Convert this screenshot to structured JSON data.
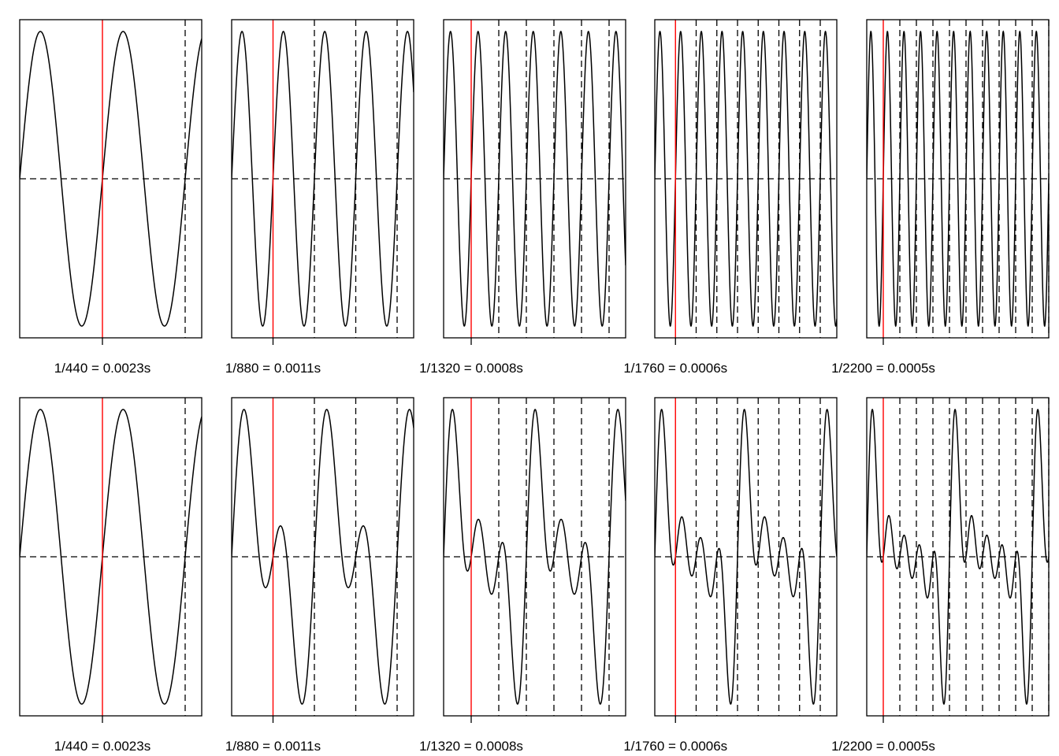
{
  "chart_data": [
    {
      "type": "line",
      "row": "top",
      "components_hz": [
        440
      ],
      "xlim_s": [
        0,
        0.005
      ],
      "marker_s": "1/440",
      "tick_label": "1/440 = 0.0023s",
      "horizontal_ref": 0,
      "colors": {
        "line": "#000000",
        "marker": "#ff0000"
      }
    },
    {
      "type": "line",
      "row": "top",
      "components_hz": [
        880
      ],
      "xlim_s": [
        0,
        0.005
      ],
      "marker_s": "1/880",
      "tick_label": "1/880 = 0.0011s",
      "horizontal_ref": 0,
      "colors": {
        "line": "#000000",
        "marker": "#ff0000"
      }
    },
    {
      "type": "line",
      "row": "top",
      "components_hz": [
        1320
      ],
      "xlim_s": [
        0,
        0.005
      ],
      "marker_s": "1/1320",
      "tick_label": "1/1320 = 0.0008s",
      "horizontal_ref": 0,
      "colors": {
        "line": "#000000",
        "marker": "#ff0000"
      }
    },
    {
      "type": "line",
      "row": "top",
      "components_hz": [
        1760
      ],
      "xlim_s": [
        0,
        0.005
      ],
      "marker_s": "1/1760",
      "tick_label": "1/1760 = 0.0006s",
      "horizontal_ref": 0,
      "colors": {
        "line": "#000000",
        "marker": "#ff0000"
      }
    },
    {
      "type": "line",
      "row": "top",
      "components_hz": [
        2200
      ],
      "xlim_s": [
        0,
        0.005
      ],
      "marker_s": "1/2200",
      "tick_label": "1/2200 = 0.0005s",
      "horizontal_ref": 0,
      "colors": {
        "line": "#000000",
        "marker": "#ff0000"
      }
    },
    {
      "type": "line",
      "row": "bottom",
      "components_hz": [
        440
      ],
      "xlim_s": [
        0,
        0.005
      ],
      "marker_s": "1/440",
      "tick_label": "1/440 = 0.0023s",
      "horizontal_ref": 0,
      "colors": {
        "line": "#000000",
        "marker": "#ff0000"
      }
    },
    {
      "type": "line",
      "row": "bottom",
      "components_hz": [
        440,
        880
      ],
      "xlim_s": [
        0,
        0.005
      ],
      "marker_s": "1/880",
      "tick_label": "1/880 = 0.0011s",
      "horizontal_ref": 0,
      "colors": {
        "line": "#000000",
        "marker": "#ff0000"
      }
    },
    {
      "type": "line",
      "row": "bottom",
      "components_hz": [
        440,
        880,
        1320
      ],
      "xlim_s": [
        0,
        0.005
      ],
      "marker_s": "1/1320",
      "tick_label": "1/1320 = 0.0008s",
      "horizontal_ref": 0,
      "colors": {
        "line": "#000000",
        "marker": "#ff0000"
      }
    },
    {
      "type": "line",
      "row": "bottom",
      "components_hz": [
        440,
        880,
        1320,
        1760
      ],
      "xlim_s": [
        0,
        0.005
      ],
      "marker_s": "1/1760",
      "tick_label": "1/1760 = 0.0006s",
      "horizontal_ref": 0,
      "colors": {
        "line": "#000000",
        "marker": "#ff0000"
      }
    },
    {
      "type": "line",
      "row": "bottom",
      "components_hz": [
        440,
        880,
        1320,
        1760,
        2200
      ],
      "xlim_s": [
        0,
        0.005
      ],
      "marker_s": "1/2200",
      "tick_label": "1/2200 = 0.0005s",
      "horizontal_ref": 0,
      "colors": {
        "line": "#000000",
        "marker": "#ff0000"
      }
    }
  ]
}
